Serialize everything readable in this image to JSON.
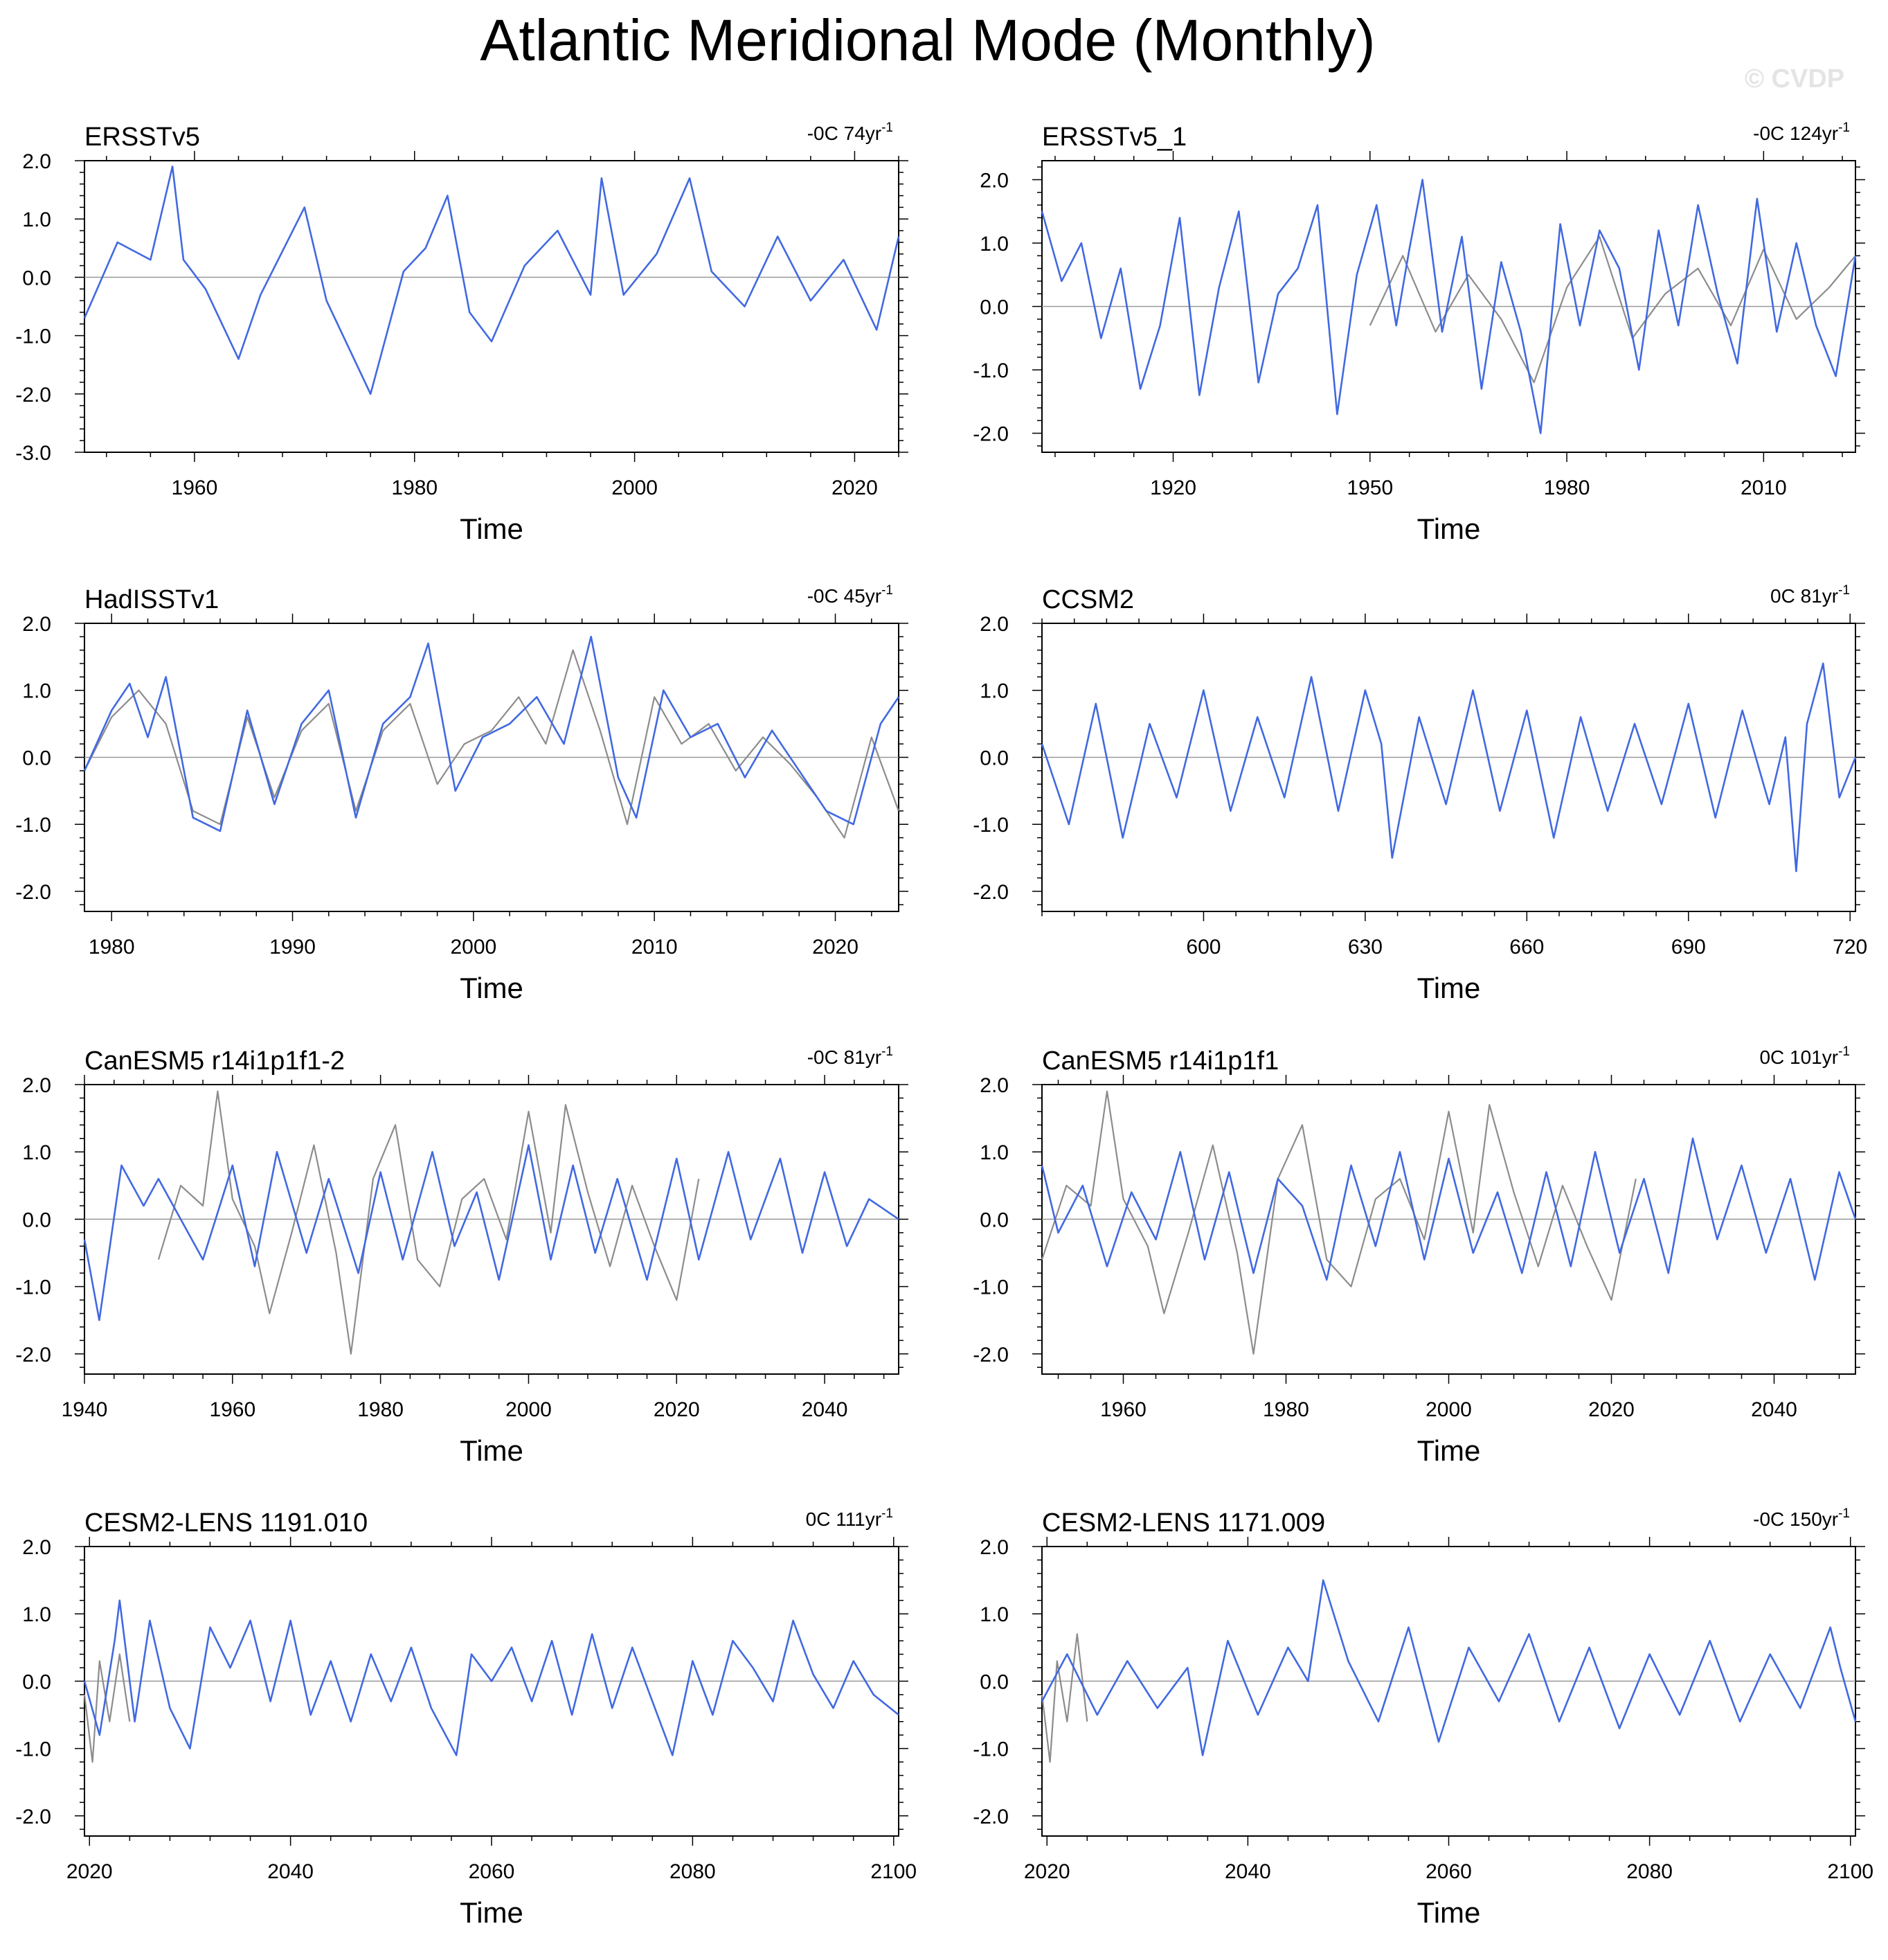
{
  "title": "Atlantic Meridional Mode (Monthly)",
  "copyright": "© CVDP",
  "colors": {
    "model": "#4169e1",
    "observation": "#8c8c8c",
    "axis": "#000000",
    "zero_line": "#999999"
  },
  "chart_data": [
    {
      "type": "line",
      "title": "ERSSTv5",
      "trend": "-0C 74yr",
      "xlabel": "Time",
      "xlim": [
        1950,
        2024
      ],
      "ylim": [
        -3,
        2
      ],
      "yticks": [
        "2.0",
        "1.0",
        "0.0",
        "-1.0",
        "-2.0",
        "-3.0"
      ],
      "xticks": [
        1960,
        1980,
        2000,
        2020
      ],
      "series": [
        {
          "role": "model",
          "x": [
            1950,
            1953,
            1956,
            1958,
            1959,
            1961,
            1964,
            1966,
            1970,
            1972,
            1974,
            1976,
            1979,
            1981,
            1983,
            1985,
            1987,
            1990,
            1993,
            1996,
            1997,
            1999,
            2002,
            2005,
            2007,
            2010,
            2013,
            2016,
            2019,
            2022,
            2024
          ],
          "y": [
            -0.7,
            0.6,
            0.3,
            1.9,
            0.3,
            -0.2,
            -1.4,
            -0.3,
            1.2,
            -0.4,
            -1.2,
            -2.0,
            0.1,
            0.5,
            1.4,
            -0.6,
            -1.1,
            0.2,
            0.8,
            -0.3,
            1.7,
            -0.3,
            0.4,
            1.7,
            0.1,
            -0.5,
            0.7,
            -0.4,
            0.3,
            -0.9,
            0.7
          ]
        }
      ]
    },
    {
      "type": "line",
      "title": "ERSSTv5_1",
      "trend": "-0C 124yr",
      "xlabel": "Time",
      "xlim": [
        1900,
        2024
      ],
      "ylim": [
        -2.3,
        2.3
      ],
      "yticks": [
        "2.0",
        "1.0",
        "0.0",
        "-1.0",
        "-2.0"
      ],
      "xticks": [
        1920,
        1950,
        1980,
        2010
      ],
      "series": [
        {
          "role": "observation",
          "x": [
            1950,
            1955,
            1960,
            1965,
            1970,
            1975,
            1980,
            1985,
            1990,
            1995,
            2000,
            2005,
            2010,
            2015,
            2020,
            2024
          ],
          "y": [
            -0.3,
            0.8,
            -0.4,
            0.5,
            -0.2,
            -1.2,
            0.3,
            1.1,
            -0.5,
            0.2,
            0.6,
            -0.3,
            0.9,
            -0.2,
            0.3,
            0.8
          ]
        },
        {
          "role": "model",
          "x": [
            1900,
            1903,
            1906,
            1909,
            1912,
            1915,
            1918,
            1921,
            1924,
            1927,
            1930,
            1933,
            1936,
            1939,
            1942,
            1945,
            1948,
            1951,
            1954,
            1956,
            1958,
            1961,
            1964,
            1967,
            1970,
            1973,
            1976,
            1979,
            1982,
            1985,
            1988,
            1991,
            1994,
            1997,
            2000,
            2003,
            2006,
            2009,
            2012,
            2015,
            2018,
            2021,
            2024
          ],
          "y": [
            1.5,
            0.4,
            1.0,
            -0.5,
            0.6,
            -1.3,
            -0.3,
            1.4,
            -1.4,
            0.3,
            1.5,
            -1.2,
            0.2,
            0.6,
            1.6,
            -1.7,
            0.5,
            1.6,
            -0.3,
            0.9,
            2.0,
            -0.4,
            1.1,
            -1.3,
            0.7,
            -0.4,
            -2.0,
            1.3,
            -0.3,
            1.2,
            0.6,
            -1.0,
            1.2,
            -0.3,
            1.6,
            0.2,
            -0.9,
            1.7,
            -0.4,
            1.0,
            -0.3,
            -1.1,
            0.8
          ]
        }
      ]
    },
    {
      "type": "line",
      "title": "HadISSTv1",
      "trend": "-0C 45yr",
      "xlabel": "Time",
      "xlim": [
        1978.5,
        2023.5
      ],
      "ylim": [
        -2.3,
        2.0
      ],
      "yticks": [
        "2.0",
        "1.0",
        "0.0",
        "-1.0",
        "-2.0"
      ],
      "xticks": [
        1980,
        1990,
        2000,
        2010,
        2020
      ],
      "series": [
        {
          "role": "observation",
          "x": [
            1978.5,
            1980,
            1981.5,
            1983,
            1984.5,
            1986,
            1987.5,
            1989,
            1990.5,
            1992,
            1993.5,
            1995,
            1996.5,
            1998,
            1999.5,
            2001,
            2002.5,
            2004,
            2005.5,
            2007,
            2008.5,
            2010,
            2011.5,
            2013,
            2014.5,
            2016,
            2017.5,
            2019,
            2020.5,
            2022,
            2023.5
          ],
          "y": [
            -0.2,
            0.6,
            1.0,
            0.5,
            -0.8,
            -1.0,
            0.6,
            -0.6,
            0.4,
            0.8,
            -0.8,
            0.4,
            0.8,
            -0.4,
            0.2,
            0.4,
            0.9,
            0.2,
            1.6,
            0.4,
            -1.0,
            0.9,
            0.2,
            0.5,
            -0.2,
            0.3,
            -0.1,
            -0.6,
            -1.2,
            0.3,
            -0.8
          ]
        },
        {
          "role": "model",
          "x": [
            1978.5,
            1980,
            1981,
            1982,
            1983,
            1984.5,
            1986,
            1987.5,
            1989,
            1990.5,
            1992,
            1993.5,
            1995,
            1996.5,
            1997.5,
            1999,
            2000.5,
            2002,
            2003.5,
            2005,
            2006.5,
            2008,
            2009,
            2010.5,
            2012,
            2013.5,
            2015,
            2016.5,
            2018,
            2019.5,
            2021,
            2022.5,
            2023.5
          ],
          "y": [
            -0.2,
            0.7,
            1.1,
            0.3,
            1.2,
            -0.9,
            -1.1,
            0.7,
            -0.7,
            0.5,
            1.0,
            -0.9,
            0.5,
            0.9,
            1.7,
            -0.5,
            0.3,
            0.5,
            0.9,
            0.2,
            1.8,
            -0.3,
            -0.9,
            1.0,
            0.3,
            0.5,
            -0.3,
            0.4,
            -0.2,
            -0.8,
            -1.0,
            0.5,
            0.9
          ]
        }
      ]
    },
    {
      "type": "line",
      "title": "CCSM2",
      "trend": "0C 81yr",
      "xlabel": "Time",
      "xlim": [
        570,
        721
      ],
      "ylim": [
        -2.3,
        2.0
      ],
      "yticks": [
        "2.0",
        "1.0",
        "0.0",
        "-1.0",
        "-2.0"
      ],
      "xticks": [
        600,
        630,
        660,
        690,
        720
      ],
      "series": [
        {
          "role": "model",
          "x": [
            570,
            575,
            580,
            585,
            590,
            595,
            600,
            605,
            610,
            615,
            620,
            625,
            630,
            633,
            635,
            640,
            645,
            650,
            655,
            660,
            665,
            670,
            675,
            680,
            685,
            690,
            695,
            700,
            705,
            708,
            710,
            712,
            715,
            718,
            721
          ],
          "y": [
            0.2,
            -1.0,
            0.8,
            -1.2,
            0.5,
            -0.6,
            1.0,
            -0.8,
            0.6,
            -0.6,
            1.2,
            -0.8,
            1.0,
            0.2,
            -1.5,
            0.6,
            -0.7,
            1.0,
            -0.8,
            0.7,
            -1.2,
            0.6,
            -0.8,
            0.5,
            -0.7,
            0.8,
            -0.9,
            0.7,
            -0.7,
            0.3,
            -1.7,
            0.5,
            1.4,
            -0.6,
            0.0
          ]
        }
      ]
    },
    {
      "type": "line",
      "title": "CanESM5 r14i1p1f1-2",
      "trend": "-0C 81yr",
      "xlabel": "Time",
      "xlim": [
        1940,
        2050
      ],
      "ylim": [
        -2.3,
        2.0
      ],
      "yticks": [
        "2.0",
        "1.0",
        "0.0",
        "-1.0",
        "-2.0"
      ],
      "xticks": [
        1940,
        1960,
        1980,
        2000,
        2020,
        2040
      ],
      "series": [
        {
          "role": "observation",
          "x": [
            1950,
            1953,
            1956,
            1958,
            1960,
            1963,
            1965,
            1968,
            1971,
            1974,
            1976,
            1979,
            1982,
            1985,
            1988,
            1991,
            1994,
            1997,
            2000,
            2003,
            2005,
            2008,
            2011,
            2014,
            2017,
            2020,
            2023
          ],
          "y": [
            -0.6,
            0.5,
            0.2,
            1.9,
            0.3,
            -0.4,
            -1.4,
            -0.2,
            1.1,
            -0.5,
            -2.0,
            0.6,
            1.4,
            -0.6,
            -1.0,
            0.3,
            0.6,
            -0.3,
            1.6,
            -0.2,
            1.7,
            0.4,
            -0.7,
            0.5,
            -0.4,
            -1.2,
            0.6
          ]
        },
        {
          "role": "model",
          "x": [
            1940,
            1942,
            1945,
            1948,
            1950,
            1953,
            1956,
            1960,
            1963,
            1966,
            1970,
            1973,
            1977,
            1980,
            1983,
            1987,
            1990,
            1993,
            1996,
            2000,
            2003,
            2006,
            2009,
            2012,
            2016,
            2020,
            2023,
            2027,
            2030,
            2034,
            2037,
            2040,
            2043,
            2046,
            2050
          ],
          "y": [
            -0.3,
            -1.5,
            0.8,
            0.2,
            0.6,
            0.0,
            -0.6,
            0.8,
            -0.7,
            1.0,
            -0.5,
            0.6,
            -0.8,
            0.7,
            -0.6,
            1.0,
            -0.4,
            0.4,
            -0.9,
            1.1,
            -0.6,
            0.8,
            -0.5,
            0.6,
            -0.9,
            0.9,
            -0.6,
            1.0,
            -0.3,
            0.9,
            -0.5,
            0.7,
            -0.4,
            0.3,
            0.0
          ]
        }
      ]
    },
    {
      "type": "line",
      "title": "CanESM5 r14i1p1f1",
      "trend": "0C 101yr",
      "xlabel": "Time",
      "xlim": [
        1950,
        2050
      ],
      "ylim": [
        -2.3,
        2.0
      ],
      "yticks": [
        "2.0",
        "1.0",
        "0.0",
        "-1.0",
        "-2.0"
      ],
      "xticks": [
        1960,
        1980,
        2000,
        2020,
        2040
      ],
      "series": [
        {
          "role": "observation",
          "x": [
            1950,
            1953,
            1956,
            1958,
            1960,
            1963,
            1965,
            1968,
            1971,
            1974,
            1976,
            1979,
            1982,
            1985,
            1988,
            1991,
            1994,
            1997,
            2000,
            2003,
            2005,
            2008,
            2011,
            2014,
            2017,
            2020,
            2023
          ],
          "y": [
            -0.6,
            0.5,
            0.2,
            1.9,
            0.3,
            -0.4,
            -1.4,
            -0.2,
            1.1,
            -0.5,
            -2.0,
            0.6,
            1.4,
            -0.6,
            -1.0,
            0.3,
            0.6,
            -0.3,
            1.6,
            -0.2,
            1.7,
            0.4,
            -0.7,
            0.5,
            -0.4,
            -1.2,
            0.6
          ]
        },
        {
          "role": "model",
          "x": [
            1950,
            1952,
            1955,
            1958,
            1961,
            1964,
            1967,
            1970,
            1973,
            1976,
            1979,
            1982,
            1985,
            1988,
            1991,
            1994,
            1997,
            2000,
            2003,
            2006,
            2009,
            2012,
            2015,
            2018,
            2021,
            2024,
            2027,
            2030,
            2033,
            2036,
            2039,
            2042,
            2045,
            2048,
            2050
          ],
          "y": [
            0.8,
            -0.2,
            0.5,
            -0.7,
            0.4,
            -0.3,
            1.0,
            -0.6,
            0.7,
            -0.8,
            0.6,
            0.2,
            -0.9,
            0.8,
            -0.4,
            1.0,
            -0.6,
            0.9,
            -0.5,
            0.4,
            -0.8,
            0.7,
            -0.7,
            1.0,
            -0.5,
            0.6,
            -0.8,
            1.2,
            -0.3,
            0.8,
            -0.5,
            0.6,
            -0.9,
            0.7,
            0.0
          ]
        }
      ]
    },
    {
      "type": "line",
      "title": "CESM2-LENS 1191.010",
      "trend": "0C 111yr",
      "xlabel": "Time",
      "xlim": [
        2019.5,
        2100.5
      ],
      "ylim": [
        -2.3,
        2.0
      ],
      "yticks": [
        "2.0",
        "1.0",
        "0.0",
        "-1.0",
        "-2.0"
      ],
      "xticks": [
        2020,
        2040,
        2060,
        2080,
        2100
      ],
      "series": [
        {
          "role": "observation",
          "x": [
            2019.5,
            2020.3,
            2021,
            2022,
            2023,
            2024
          ],
          "y": [
            -0.2,
            -1.2,
            0.3,
            -0.6,
            0.4,
            -0.6
          ]
        },
        {
          "role": "model",
          "x": [
            2019.5,
            2021,
            2022.5,
            2023,
            2024.5,
            2026,
            2028,
            2030,
            2032,
            2034,
            2036,
            2038,
            2040,
            2042,
            2044,
            2046,
            2048,
            2050,
            2052,
            2054,
            2056.5,
            2058,
            2060,
            2062,
            2064,
            2066,
            2068,
            2070,
            2072,
            2074,
            2076,
            2078,
            2080,
            2082,
            2084,
            2086,
            2088,
            2090,
            2092,
            2094,
            2096,
            2098,
            2100.5
          ],
          "y": [
            0.0,
            -0.8,
            0.6,
            1.2,
            -0.6,
            0.9,
            -0.4,
            -1.0,
            0.8,
            0.2,
            0.9,
            -0.3,
            0.9,
            -0.5,
            0.3,
            -0.6,
            0.4,
            -0.3,
            0.5,
            -0.4,
            -1.1,
            0.4,
            0.0,
            0.5,
            -0.3,
            0.6,
            -0.5,
            0.7,
            -0.4,
            0.5,
            -0.3,
            -1.1,
            0.3,
            -0.5,
            0.6,
            0.2,
            -0.3,
            0.9,
            0.1,
            -0.4,
            0.3,
            -0.2,
            -0.5
          ]
        }
      ]
    },
    {
      "type": "line",
      "title": "CESM2-LENS 1171.009",
      "trend": "-0C 150yr",
      "xlabel": "Time",
      "xlim": [
        2019.5,
        2100.5
      ],
      "ylim": [
        -2.3,
        2.0
      ],
      "yticks": [
        "2.0",
        "1.0",
        "0.0",
        "-1.0",
        "-2.0"
      ],
      "xticks": [
        2020,
        2040,
        2060,
        2080,
        2100
      ],
      "series": [
        {
          "role": "observation",
          "x": [
            2019.5,
            2020.3,
            2021,
            2022,
            2023,
            2024
          ],
          "y": [
            -0.2,
            -1.2,
            0.3,
            -0.6,
            0.7,
            -0.6
          ]
        },
        {
          "role": "model",
          "x": [
            2019.5,
            2022,
            2025,
            2028,
            2031,
            2034,
            2035.5,
            2038,
            2041,
            2044,
            2046,
            2047.5,
            2050,
            2053,
            2056,
            2059,
            2062,
            2065,
            2068,
            2071,
            2074,
            2077,
            2080,
            2083,
            2086,
            2089,
            2092,
            2095,
            2098,
            2099,
            2100.5
          ],
          "y": [
            -0.3,
            0.4,
            -0.5,
            0.3,
            -0.4,
            0.2,
            -1.1,
            0.6,
            -0.5,
            0.5,
            0.0,
            1.5,
            0.3,
            -0.6,
            0.8,
            -0.9,
            0.5,
            -0.3,
            0.7,
            -0.6,
            0.5,
            -0.7,
            0.4,
            -0.5,
            0.6,
            -0.6,
            0.4,
            -0.4,
            0.8,
            0.2,
            -0.6
          ]
        }
      ]
    }
  ]
}
